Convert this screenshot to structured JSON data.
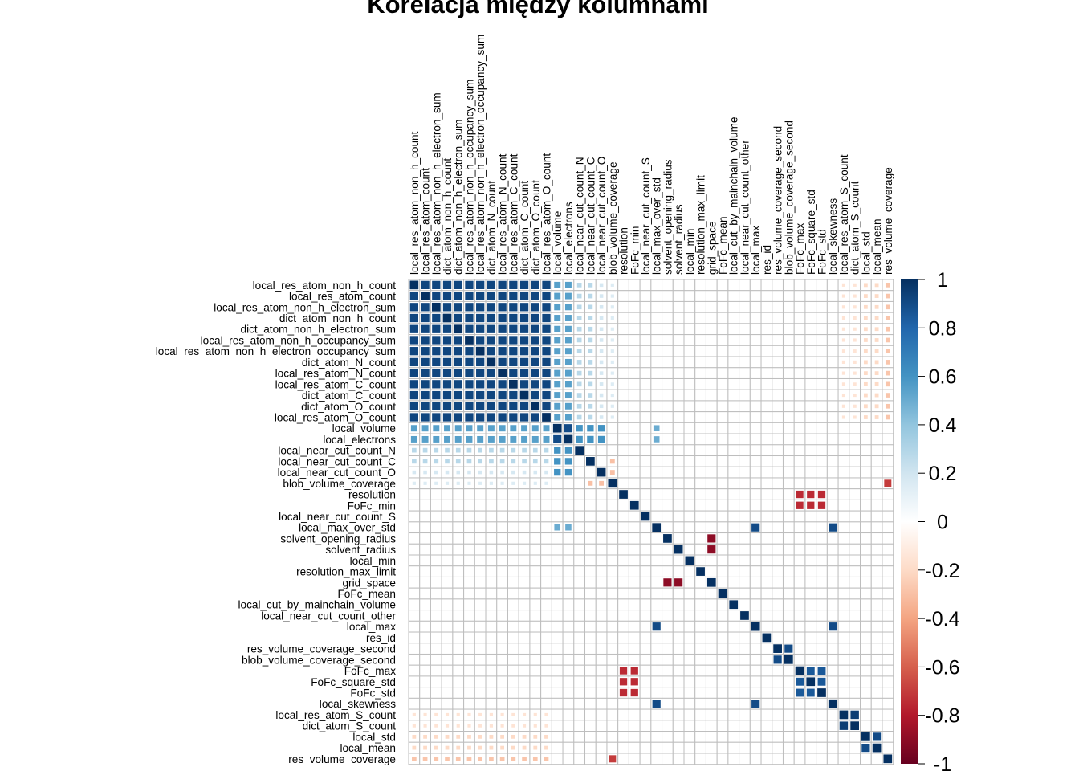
{
  "chart_data": {
    "type": "heatmap",
    "title": "Korelacja między kolumnami",
    "labels": [
      "local_res_atom_non_h_count",
      "local_res_atom_count",
      "local_res_atom_non_h_electron_sum",
      "dict_atom_non_h_count",
      "dict_atom_non_h_electron_sum",
      "local_res_atom_non_h_occupancy_sum",
      "local_res_atom_non_h_electron_occupancy_sum",
      "dict_atom_N_count",
      "local_res_atom_N_count",
      "local_res_atom_C_count",
      "dict_atom_C_count",
      "dict_atom_O_count",
      "local_res_atom_O_count",
      "local_volume",
      "local_electrons",
      "local_near_cut_count_N",
      "local_near_cut_count_C",
      "local_near_cut_count_O",
      "blob_volume_coverage",
      "resolution",
      "FoFc_min",
      "local_near_cut_count_S",
      "local_max_over_std",
      "solvent_opening_radius",
      "solvent_radius",
      "local_min",
      "resolution_max_limit",
      "grid_space",
      "FoFc_mean",
      "local_cut_by_mainchain_volume",
      "local_near_cut_count_other",
      "local_max",
      "res_id",
      "res_volume_coverage_second",
      "blob_volume_coverage_second",
      "FoFc_max",
      "FoFc_square_std",
      "FoFc_std",
      "local_skewness",
      "local_res_atom_S_count",
      "dict_atom_S_count",
      "local_std",
      "local_mean",
      "res_volume_coverage"
    ],
    "strong_pairs": [
      {
        "a": [
          0,
          12
        ],
        "b": [
          0,
          12
        ],
        "value": 0.92
      },
      {
        "a": [
          0,
          12
        ],
        "b": [
          13,
          14
        ],
        "value": 0.55
      },
      {
        "a": [
          0,
          12
        ],
        "b": [
          15,
          16
        ],
        "value": 0.28
      },
      {
        "a": [
          0,
          12
        ],
        "b": [
          17,
          17
        ],
        "value": 0.18
      },
      {
        "a": [
          0,
          12
        ],
        "b": [
          18,
          18
        ],
        "value": 0.15
      },
      {
        "a": [
          0,
          12
        ],
        "b": [
          39,
          40
        ],
        "value": -0.15
      },
      {
        "a": [
          0,
          12
        ],
        "b": [
          41,
          42
        ],
        "value": -0.2
      },
      {
        "a": [
          0,
          12
        ],
        "b": [
          43,
          43
        ],
        "value": -0.28
      },
      {
        "a": [
          13,
          14
        ],
        "b": [
          13,
          14
        ],
        "value": 0.9
      },
      {
        "a": [
          13,
          14
        ],
        "b": [
          15,
          17
        ],
        "value": 0.6
      },
      {
        "a": [
          22,
          22
        ],
        "b": [
          13,
          14
        ],
        "value": 0.5
      },
      {
        "a": [
          18,
          18
        ],
        "b": [
          16,
          17
        ],
        "value": -0.3
      },
      {
        "a": [
          19,
          20
        ],
        "b": [
          35,
          37
        ],
        "value": -0.75
      },
      {
        "a": [
          23,
          24
        ],
        "b": [
          27,
          27
        ],
        "value": -0.9
      },
      {
        "a": [
          33,
          33
        ],
        "b": [
          34,
          34
        ],
        "value": 0.9
      },
      {
        "a": [
          35,
          37
        ],
        "b": [
          35,
          37
        ],
        "value": 0.85
      },
      {
        "a": [
          22,
          22
        ],
        "b": [
          31,
          31
        ],
        "value": 0.9
      },
      {
        "a": [
          22,
          22
        ],
        "b": [
          38,
          38
        ],
        "value": 0.9
      },
      {
        "a": [
          31,
          31
        ],
        "b": [
          38,
          38
        ],
        "value": 0.9
      },
      {
        "a": [
          39,
          39
        ],
        "b": [
          40,
          40
        ],
        "value": 0.95
      },
      {
        "a": [
          41,
          41
        ],
        "b": [
          42,
          42
        ],
        "value": 0.9
      },
      {
        "a": [
          18,
          18
        ],
        "b": [
          43,
          43
        ],
        "value": -0.7
      }
    ],
    "color_scale": {
      "min": -1,
      "max": 1,
      "low_color": "#67001f",
      "mid_color": "#ffffff",
      "high_color": "#053061"
    },
    "colorbar_ticks": [
      "1",
      "0.8",
      "0.6",
      "0.4",
      "0.2",
      "0",
      "-0.2",
      "-0.4",
      "-0.6",
      "-0.8",
      "-1"
    ],
    "grid": true,
    "legend_placement": "right"
  }
}
